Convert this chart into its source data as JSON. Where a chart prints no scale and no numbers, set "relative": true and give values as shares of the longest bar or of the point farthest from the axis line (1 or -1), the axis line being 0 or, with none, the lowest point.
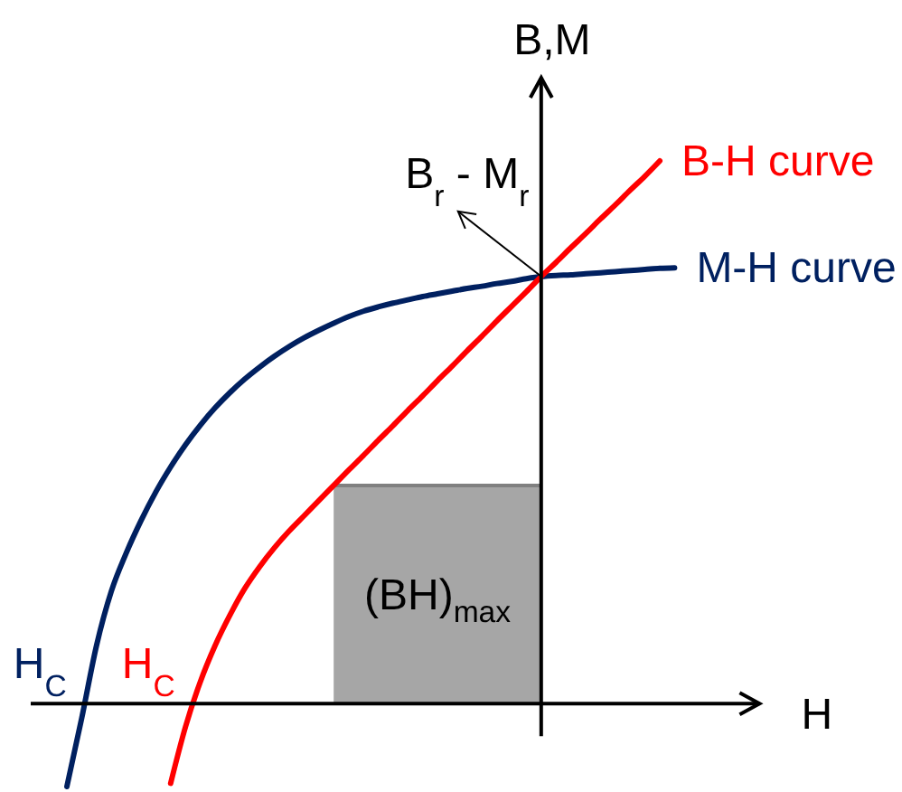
{
  "chart_data": {
    "type": "line",
    "relative": true,
    "xlabel": "H",
    "ylabel": "B,M",
    "categories": [
      null,
      null,
      null,
      null,
      null,
      null,
      null,
      null,
      null,
      null,
      null,
      null,
      null,
      null,
      null,
      null,
      null,
      null,
      null,
      null,
      null,
      null,
      null,
      null,
      null,
      null,
      null,
      null,
      null,
      null,
      null,
      null,
      null,
      null,
      null,
      null,
      null,
      null,
      null,
      null,
      null,
      null
    ],
    "series": [
      {
        "name": "M-H curve",
        "color": "#002060",
        "values": [
          -0.153,
          -0.027,
          0.107,
          0.207,
          0.277,
          0.337,
          0.39,
          0.436,
          0.477,
          0.513,
          0.545,
          0.573,
          0.598,
          0.62,
          0.64,
          0.658,
          0.674,
          0.688,
          0.701,
          0.713,
          0.723,
          0.731,
          0.738,
          0.744,
          0.75,
          0.755,
          0.76,
          0.765,
          0.769,
          0.774,
          0.778,
          0.783,
          0.787,
          0.789,
          0.79,
          0.792,
          0.794,
          0.796,
          0.798,
          0.8,
          0.802,
          0.803
        ]
      },
      {
        "name": "B-H curve",
        "color": "#ff0000",
        "values": [
          null,
          null,
          null,
          null,
          null,
          null,
          null,
          -0.147,
          -0.043,
          0.04,
          0.107,
          0.163,
          0.212,
          0.252,
          0.287,
          0.318,
          0.346,
          0.374,
          0.402,
          0.43,
          0.457,
          0.485,
          0.512,
          0.54,
          0.567,
          0.595,
          0.622,
          0.65,
          0.677,
          0.705,
          0.732,
          0.759,
          0.787,
          0.813,
          0.84,
          0.866,
          0.893,
          0.919,
          0.946,
          0.972,
          1,
          null
        ]
      },
      {
        "type": "area",
        "name": "(BH)$_{max}$",
        "color": "#a6a6a6",
        "values": [
          null,
          null,
          null,
          null,
          null,
          null,
          null,
          null,
          null,
          null,
          null,
          null,
          null,
          null,
          null,
          null,
          null,
          null,
          0.402,
          0.402,
          0.402,
          0.402,
          0.402,
          0.402,
          0.402,
          0.402,
          0.402,
          0.402,
          0.402,
          0.402,
          0.402,
          0.402,
          0.402,
          null,
          null,
          null,
          null,
          null,
          null,
          null,
          null,
          null
        ]
      }
    ],
    "annotations": [
      "H$_{C}$",
      "H$_{C}$",
      "B$_{r}$ - M$_{r}$"
    ]
  }
}
